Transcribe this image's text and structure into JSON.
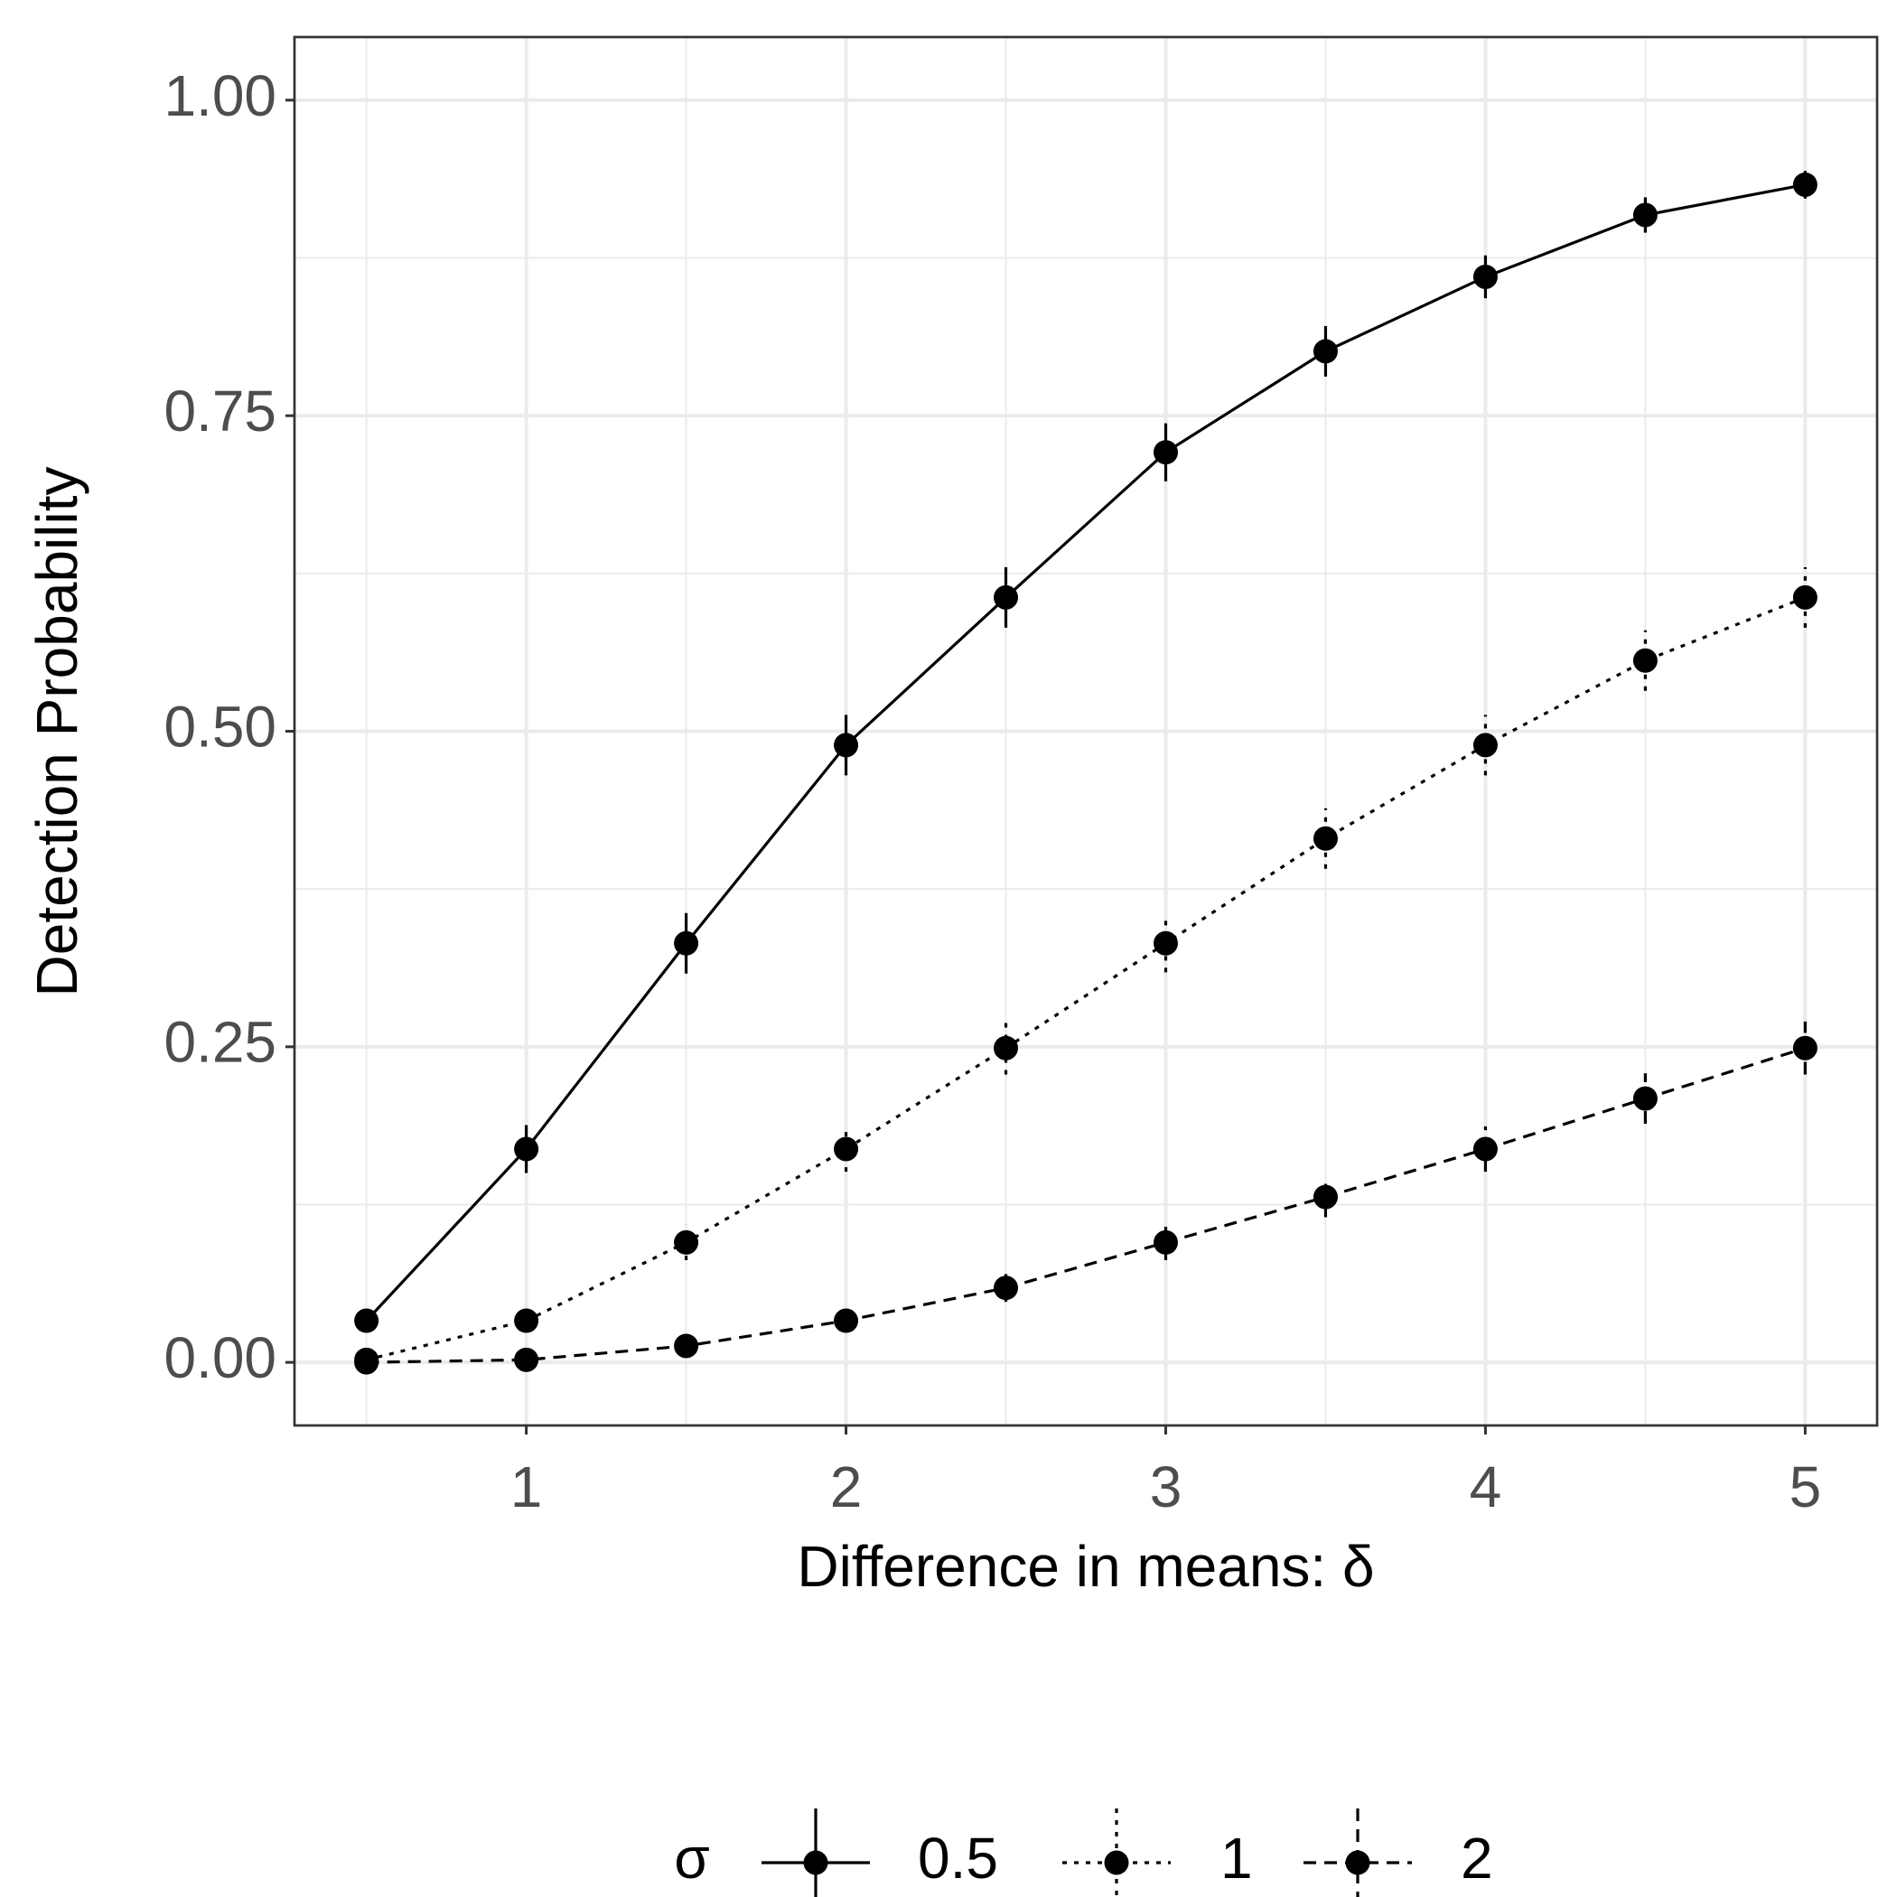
{
  "chart_data": {
    "type": "line",
    "x_label": "Difference in means: δ",
    "y_label": "Detection Probability",
    "legend_title": "σ",
    "legend_position": "bottom",
    "x": [
      0.5,
      1,
      1.5,
      2,
      2.5,
      3,
      3.5,
      4,
      4.5,
      5
    ],
    "series": [
      {
        "name": "0.5",
        "color": "#000000",
        "linestyle": "solid",
        "values": [
          0.033,
          0.169,
          0.332,
          0.489,
          0.606,
          0.721,
          0.801,
          0.86,
          0.909,
          0.933
        ],
        "errors": [
          0.005,
          0.019,
          0.024,
          0.024,
          0.024,
          0.023,
          0.02,
          0.017,
          0.014,
          0.011
        ]
      },
      {
        "name": "1",
        "color": "#000000",
        "linestyle": "dotted",
        "values": [
          0.002,
          0.033,
          0.095,
          0.169,
          0.249,
          0.332,
          0.415,
          0.489,
          0.556,
          0.606
        ],
        "errors": [
          0.003,
          0.008,
          0.014,
          0.018,
          0.021,
          0.023,
          0.024,
          0.024,
          0.024,
          0.024
        ]
      },
      {
        "name": "2",
        "color": "#000000",
        "linestyle": "dashed",
        "values": [
          0,
          0.002,
          0.013,
          0.033,
          0.059,
          0.095,
          0.131,
          0.169,
          0.209,
          0.249
        ],
        "errors": [
          0.001,
          0.002,
          0.005,
          0.008,
          0.011,
          0.014,
          0.016,
          0.018,
          0.02,
          0.021
        ]
      }
    ],
    "xlim": [
      0.275,
      5.225
    ],
    "ylim": [
      -0.05,
      1.05
    ],
    "xticks": [
      1,
      2,
      3,
      4,
      5
    ],
    "yticks": [
      {
        "value": 0,
        "label": "0.00"
      },
      {
        "value": 0.25,
        "label": "0.25"
      },
      {
        "value": 0.5,
        "label": "0.50"
      },
      {
        "value": 0.75,
        "label": "0.75"
      },
      {
        "value": 1,
        "label": "1.00"
      }
    ],
    "x_minor_grid": [
      0.5,
      1.5,
      2.5,
      3.5,
      4.5
    ],
    "y_minor_grid": [
      0.125,
      0.375,
      0.625,
      0.875
    ],
    "grid": true
  }
}
